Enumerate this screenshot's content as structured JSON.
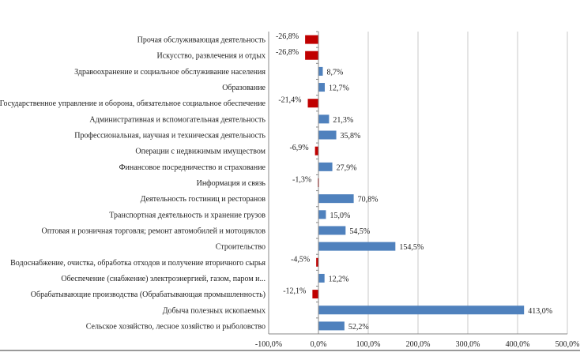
{
  "chart_data": {
    "type": "bar",
    "orientation": "horizontal",
    "title": "",
    "xlabel": "",
    "ylabel": "",
    "xlim": [
      -100,
      500
    ],
    "xticks": [
      -100,
      0,
      100,
      200,
      300,
      400,
      500
    ],
    "xtick_labels": [
      "-100,0%",
      "0,0%",
      "100,0%",
      "200,0%",
      "300,0%",
      "400,0%",
      "500,0%"
    ],
    "grid": true,
    "positive_color": "#4f81bd",
    "negative_color": "#c00000",
    "categories": [
      "Прочая обслуживающая деятельность",
      "Искусство, развлечения и отдых",
      "Здравоохранение и социальное обслуживание населения",
      "Образование",
      "Государственное управление и оборона, обязательное социальное обеспечение",
      "Административная и вспомогательная деятельность",
      "Профессиональная, научная и техническая деятельность",
      "Операции с недвижимым имуществом",
      "Финансовое посредничество и страхование",
      "Информация и связь",
      "Деятельность гостиниц и ресторанов",
      "Транспортная деятельность и хранение грузов",
      "Оптовая и розничная торговля; ремонт автомобилей и мотоциклов",
      "Строительство",
      "Водоснабжение, очистка, обработка отходов и получение вторичного сырья",
      "Обеспечение (снабжение) электроэнергией, газом, паром и...",
      "Обрабатывающие производства (Обрабатывающая промышленность)",
      "Добыча полезных ископаемых",
      "Сельское хозяйство, лесное хозяйство и рыболовство"
    ],
    "values": [
      -26.8,
      -26.8,
      8.7,
      12.7,
      -21.4,
      21.3,
      35.8,
      -6.9,
      27.9,
      -1.3,
      70.8,
      15.0,
      54.5,
      154.5,
      -4.5,
      12.2,
      -12.1,
      413.0,
      52.2
    ],
    "value_labels": [
      "-26,8%",
      "-26,8%",
      "8,7%",
      "12,7%",
      "-21,4%",
      "21,3%",
      "35,8%",
      "-6,9%",
      "27,9%",
      "-1,3%",
      "70,8%",
      "15,0%",
      "54,5%",
      "154,5%",
      "-4,5%",
      "12,2%",
      "-12,1%",
      "413,0%",
      "52,2%"
    ]
  }
}
